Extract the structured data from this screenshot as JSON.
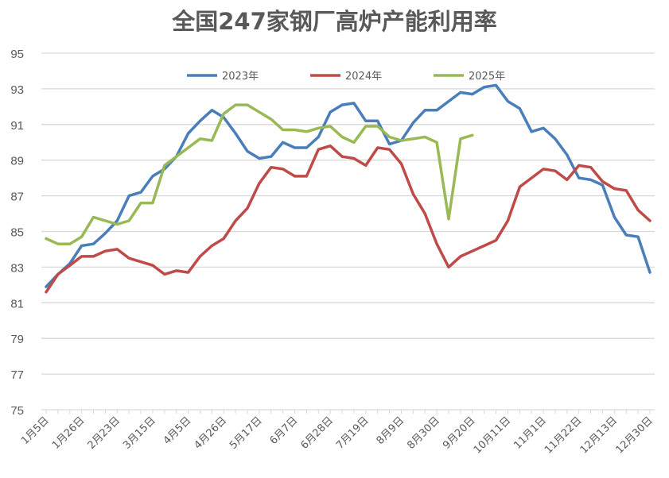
{
  "chart_data": {
    "type": "line",
    "title": "全国247家钢厂高炉产能利用率",
    "xlabel": "",
    "ylabel": "",
    "ylim": [
      75,
      95
    ],
    "yticks": [
      "75",
      "77",
      "79",
      "81",
      "83",
      "85",
      "87",
      "89",
      "91",
      "93",
      "95"
    ],
    "x_labels": [
      "1月5日",
      "1月26日",
      "2月23日",
      "3月15日",
      "4月5日",
      "4月26日",
      "5月17日",
      "6月7日",
      "6月28日",
      "7月19日",
      "8月9日",
      "8月30日",
      "9月20日",
      "10月11日",
      "11月1日",
      "11月22日",
      "12月13日",
      "12月30日"
    ],
    "label_every": 3,
    "grid": true,
    "legend_position": "top",
    "series": [
      {
        "name": "2023年",
        "color": "#4A7EBB",
        "values": [
          81.9,
          82.6,
          83.2,
          84.2,
          84.3,
          84.9,
          85.6,
          87.0,
          87.2,
          88.1,
          88.5,
          89.2,
          90.5,
          91.2,
          91.8,
          91.4,
          90.5,
          89.5,
          89.1,
          89.2,
          90.0,
          89.7,
          89.7,
          90.3,
          91.7,
          92.1,
          92.2,
          91.2,
          91.2,
          89.9,
          90.1,
          91.1,
          91.8,
          91.8,
          92.3,
          92.8,
          92.7,
          93.1,
          93.2,
          92.3,
          91.9,
          90.6,
          90.8,
          90.2,
          89.3,
          88.0,
          87.9,
          87.6,
          85.8,
          84.8,
          84.7,
          82.7
        ]
      },
      {
        "name": "2024年",
        "color": "#BE4B48",
        "values": [
          81.6,
          82.6,
          83.1,
          83.6,
          83.6,
          83.9,
          84.0,
          83.5,
          83.3,
          83.1,
          82.6,
          82.8,
          82.7,
          83.6,
          84.2,
          84.6,
          85.6,
          86.3,
          87.7,
          88.6,
          88.5,
          88.1,
          88.1,
          89.6,
          89.8,
          89.2,
          89.1,
          88.7,
          89.7,
          89.6,
          88.8,
          87.1,
          86.0,
          84.3,
          83.0,
          83.6,
          83.9,
          84.2,
          84.5,
          85.6,
          87.5,
          88.0,
          88.5,
          88.4,
          87.9,
          88.7,
          88.6,
          87.8,
          87.4,
          87.3,
          86.2,
          85.6
        ]
      },
      {
        "name": "2025年",
        "color": "#98B954",
        "values": [
          84.6,
          84.3,
          84.3,
          84.7,
          85.8,
          85.6,
          85.4,
          85.6,
          86.6,
          86.6,
          88.7,
          89.2,
          89.7,
          90.2,
          90.1,
          91.6,
          92.1,
          92.1,
          91.7,
          91.3,
          90.7,
          90.7,
          90.6,
          90.8,
          90.9,
          90.3,
          90.0,
          90.9,
          90.9,
          90.3,
          90.1,
          90.2,
          90.3,
          90.0,
          85.7,
          90.2,
          90.4
        ]
      }
    ]
  }
}
